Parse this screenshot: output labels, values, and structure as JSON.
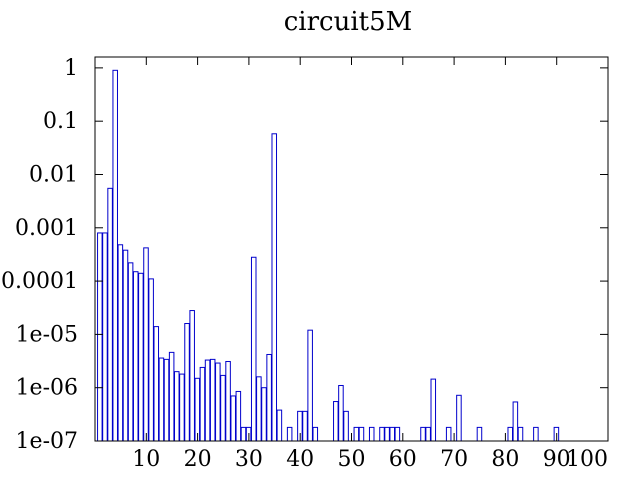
{
  "chart_data": {
    "type": "bar",
    "title": "circuit5M",
    "xlabel": "",
    "ylabel": "",
    "x_scale": "linear",
    "y_scale": "log",
    "xlim": [
      0,
      100
    ],
    "ylim": [
      1e-07,
      1.6
    ],
    "x_ticks": [
      10,
      20,
      30,
      40,
      50,
      60,
      70,
      80,
      90,
      100
    ],
    "x_tick_labels": [
      "10",
      "20",
      "30",
      "40",
      "50",
      "60",
      "70",
      "80",
      "90",
      "100"
    ],
    "y_ticks": [
      1e-07,
      1e-06,
      1e-05,
      0.0001,
      0.001,
      0.01,
      0.1,
      1
    ],
    "y_tick_labels": [
      "1e-07",
      "1e-06",
      "1e-05",
      "0.0001",
      "0.001",
      "0.01",
      "0.1",
      "1"
    ],
    "grid": false,
    "legend": "none",
    "bar_style": "outline",
    "bar_color": "#0000cc",
    "x": [
      1,
      2,
      3,
      4,
      5,
      6,
      7,
      8,
      9,
      10,
      11,
      12,
      13,
      14,
      15,
      16,
      17,
      18,
      19,
      20,
      21,
      22,
      23,
      24,
      25,
      26,
      27,
      28,
      29,
      30,
      31,
      32,
      33,
      34,
      35,
      36,
      37,
      38,
      39,
      40,
      41,
      42,
      43,
      44,
      45,
      46,
      47,
      48,
      49,
      50,
      51,
      52,
      53,
      54,
      55,
      56,
      57,
      58,
      59,
      60,
      61,
      62,
      63,
      64,
      65,
      66,
      67,
      68,
      69,
      70,
      71,
      72,
      73,
      74,
      75,
      76,
      77,
      78,
      79,
      80,
      81,
      82,
      83,
      84,
      85,
      86,
      87,
      88,
      89,
      90,
      91,
      92,
      93,
      94,
      95,
      96,
      97,
      98,
      99
    ],
    "values": [
      0.0008,
      0.0008,
      0.0055,
      0.9,
      0.00048,
      0.00038,
      0.00022,
      0.00015,
      0.00014,
      0.00042,
      0.00011,
      1.4e-05,
      3.6e-06,
      3.4e-06,
      4.6e-06,
      2e-06,
      1.8e-06,
      1.6e-05,
      2.8e-05,
      1.5e-06,
      2.4e-06,
      3.3e-06,
      3.4e-06,
      2.9e-06,
      1.7e-06,
      3.1e-06,
      7e-07,
      8.5e-07,
      1.8e-07,
      1.8e-07,
      0.00028,
      1.6e-06,
      1e-06,
      4.2e-06,
      0.058,
      3.8e-07,
      null,
      1.8e-07,
      null,
      3.6e-07,
      3.6e-07,
      1.2e-05,
      1.8e-07,
      null,
      null,
      null,
      5.5e-07,
      1.1e-06,
      3.6e-07,
      null,
      1.8e-07,
      1.8e-07,
      null,
      1.8e-07,
      null,
      1.8e-07,
      1.8e-07,
      1.8e-07,
      1.8e-07,
      null,
      null,
      null,
      null,
      1.8e-07,
      1.8e-07,
      1.45e-06,
      null,
      null,
      1.8e-07,
      null,
      7.2e-07,
      null,
      null,
      null,
      1.8e-07,
      null,
      null,
      null,
      null,
      null,
      1.8e-07,
      5.4e-07,
      1.8e-07,
      null,
      null,
      1.8e-07,
      null,
      null,
      null,
      1.8e-07,
      null,
      null,
      null,
      null,
      null,
      null,
      null,
      null,
      null
    ]
  }
}
